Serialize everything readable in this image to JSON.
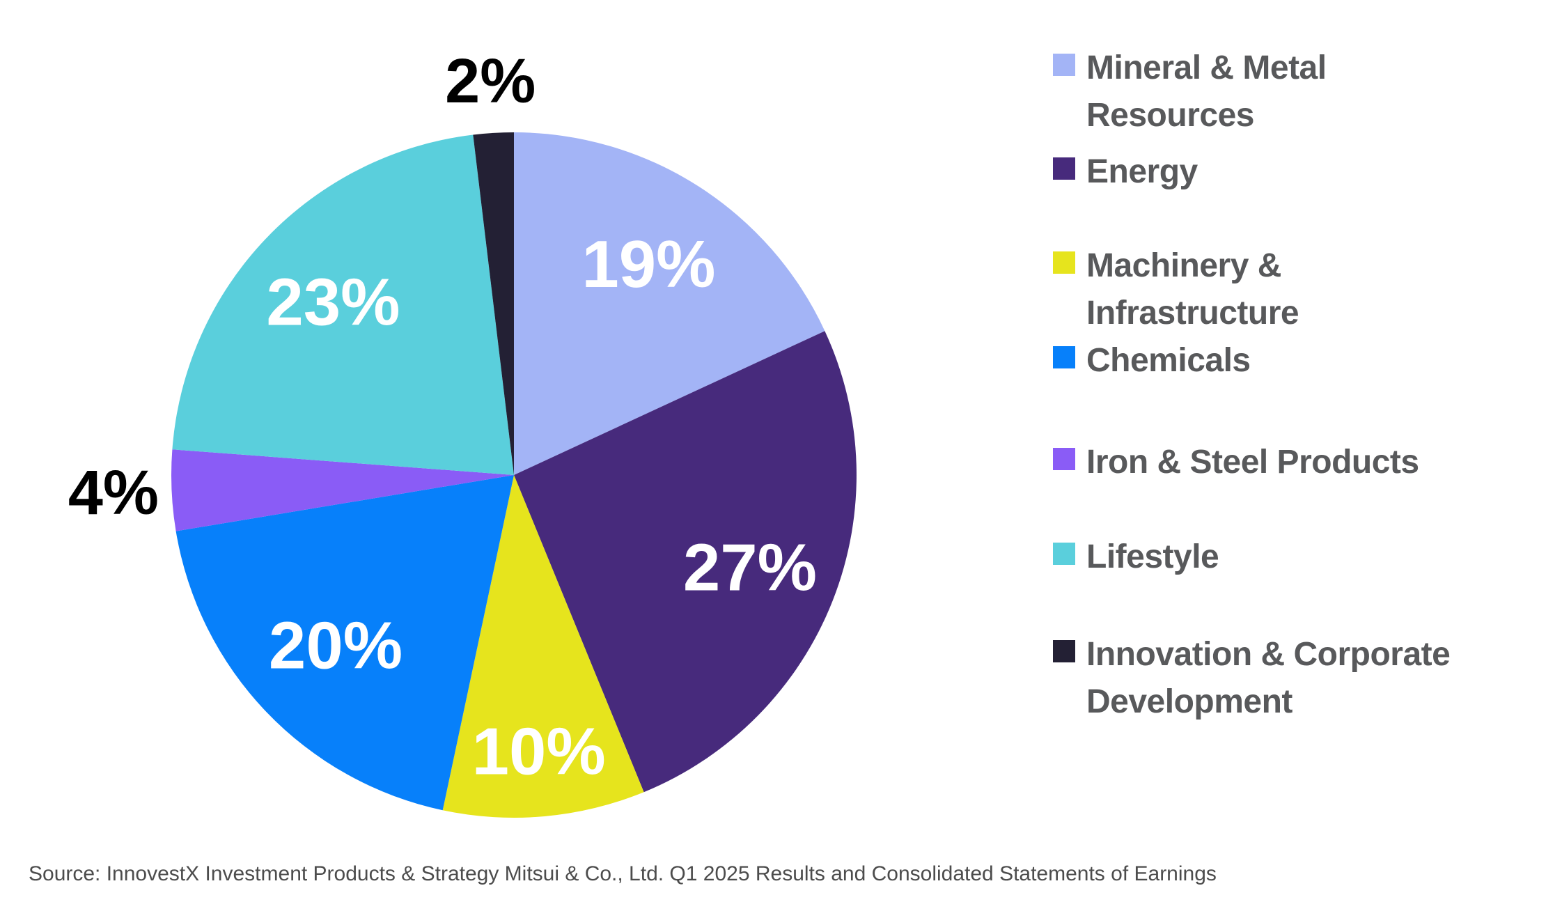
{
  "chart_data": {
    "type": "pie",
    "title": "",
    "direction": "clockwise",
    "start_angle_deg": 0,
    "total_of_displayed_percents": 105,
    "legend_position": "right",
    "grid": false,
    "inside_label_color": "#FFFFFF",
    "outside_label_color": "#000000",
    "slices": [
      {
        "id": "mineral-metal-resources",
        "label": "Mineral & Metal Resources",
        "legend_lines": [
          "Mineral & Metal",
          "Resources"
        ],
        "value": 19,
        "display": "19%",
        "color": "#A3B4F6",
        "label_placement": "inside",
        "label_r": 0.73
      },
      {
        "id": "energy",
        "label": "Energy",
        "legend_lines": [
          "Energy"
        ],
        "value": 27,
        "display": "27%",
        "color": "#472A7C",
        "label_placement": "inside",
        "label_r": 0.74
      },
      {
        "id": "machinery-infrastructure",
        "label": "Machinery & Infrastructure",
        "legend_lines": [
          "Machinery &",
          "Infrastructure"
        ],
        "value": 10,
        "display": "10%",
        "color": "#E6E41D",
        "label_placement": "inside",
        "label_r": 0.81
      },
      {
        "id": "chemicals",
        "label": "Chemicals",
        "legend_lines": [
          "Chemicals"
        ],
        "value": 20,
        "display": "20%",
        "color": "#0780FA",
        "label_placement": "inside",
        "label_r": 0.72
      },
      {
        "id": "iron-steel-products",
        "label": "Iron & Steel Products",
        "legend_lines": [
          "Iron & Steel Products"
        ],
        "value": 4,
        "display": "4%",
        "color": "#8A5CF6",
        "label_placement": "outside",
        "label_r": 1.17
      },
      {
        "id": "lifestyle",
        "label": "Lifestyle",
        "legend_lines": [
          "Lifestyle"
        ],
        "value": 23,
        "display": "23%",
        "color": "#5ACFDC",
        "label_placement": "inside",
        "label_r": 0.73
      },
      {
        "id": "innovation-corporate-development",
        "label": "Innovation & Corporate Development",
        "legend_lines": [
          "Innovation & Corporate",
          "Development"
        ],
        "value": 2,
        "display": "2%",
        "color": "#232034",
        "label_placement": "outside",
        "label_r": 1.15
      }
    ]
  },
  "source": {
    "text": "Source: InnovestX Investment Products & Strategy Mitsui & Co., Ltd. Q1 2025 Results and Consolidated Statements of Earnings"
  }
}
